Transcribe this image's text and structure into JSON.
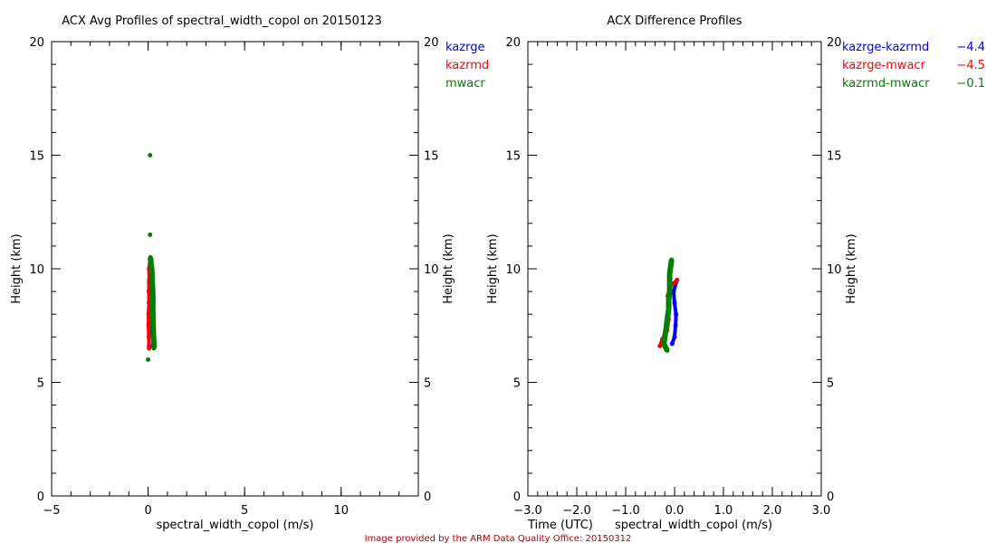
{
  "footer": "Image provided by the ARM Data Quality Office: 20150312",
  "chart_data": [
    {
      "type": "scatter",
      "title": "ACX Avg Profiles of spectral_width_copol on 20150123",
      "xlabel": "spectral_width_copol (m/s)",
      "ylabel": "Height (km)",
      "xlim": [
        -5,
        14
      ],
      "ylim": [
        0,
        20
      ],
      "xticks": [
        "-5",
        "0",
        "5",
        "10"
      ],
      "xtick_values": [
        -5,
        0,
        5,
        10
      ],
      "yticks": [
        "0",
        "5",
        "10",
        "15",
        "20"
      ],
      "ytick_values": [
        0,
        5,
        10,
        15,
        20
      ],
      "legend_position": "top-right-outside",
      "series": [
        {
          "name": "kazrge",
          "color": "#0000ff",
          "points": [
            [
              0.05,
              6.6
            ],
            [
              0.04,
              7.0
            ],
            [
              0.05,
              7.5
            ],
            [
              0.03,
              8.0
            ],
            [
              0.05,
              8.5
            ],
            [
              0.04,
              9.0
            ],
            [
              0.06,
              9.4
            ]
          ]
        },
        {
          "name": "kazrmd",
          "color": "#ff0000",
          "points": [
            [
              0.05,
              6.5
            ],
            [
              0.04,
              7.0
            ],
            [
              0.02,
              7.5
            ],
            [
              0.03,
              8.0
            ],
            [
              0.05,
              8.5
            ],
            [
              0.04,
              9.0
            ],
            [
              0.06,
              9.5
            ],
            [
              0.05,
              10.0
            ],
            [
              0.1,
              10.4
            ]
          ]
        },
        {
          "name": "mwacr",
          "color": "#008000",
          "points": [
            [
              0.3,
              6.5
            ],
            [
              0.3,
              6.8
            ],
            [
              0.28,
              7.0
            ],
            [
              0.27,
              7.3
            ],
            [
              0.26,
              7.6
            ],
            [
              0.25,
              8.0
            ],
            [
              0.24,
              8.3
            ],
            [
              0.25,
              8.6
            ],
            [
              0.24,
              9.0
            ],
            [
              0.22,
              9.3
            ],
            [
              0.2,
              9.6
            ],
            [
              0.2,
              9.9
            ],
            [
              0.16,
              10.2
            ],
            [
              0.12,
              10.5
            ],
            [
              0.1,
              15.0
            ],
            [
              0.1,
              11.5
            ],
            [
              0.0,
              6.0
            ]
          ]
        }
      ]
    },
    {
      "type": "scatter",
      "title": "ACX Difference Profiles",
      "xlabel": "spectral_width_copol (m/s)",
      "xlabel2": "Time (UTC)",
      "ylabel": "Height (km)",
      "xlim": [
        -3,
        3
      ],
      "ylim": [
        0,
        20
      ],
      "xticks": [
        "-3.0",
        "-2.0",
        "-1.0",
        "0.0",
        "1.0",
        "2.0",
        "3.0"
      ],
      "xtick_values": [
        -3,
        -2,
        -1,
        0,
        1,
        2,
        3
      ],
      "yticks": [
        "0",
        "5",
        "10",
        "15",
        "20"
      ],
      "ytick_values": [
        0,
        5,
        10,
        15,
        20
      ],
      "legend_position": "top-right-outside",
      "series": [
        {
          "name": "kazrge-kazrmd",
          "value": "-4.4",
          "color": "#0000ff",
          "points": [
            [
              -0.05,
              6.7
            ],
            [
              0.0,
              7.0
            ],
            [
              0.02,
              7.5
            ],
            [
              0.03,
              8.0
            ],
            [
              0.0,
              8.5
            ],
            [
              -0.02,
              9.0
            ],
            [
              0.05,
              9.5
            ]
          ]
        },
        {
          "name": "kazrge-mwacr",
          "value": "-4.5",
          "color": "#ff0000",
          "points": [
            [
              -0.3,
              6.6
            ],
            [
              -0.25,
              6.9
            ],
            [
              -0.15,
              7.3
            ],
            [
              -0.12,
              7.8
            ],
            [
              -0.12,
              8.3
            ],
            [
              -0.14,
              8.8
            ],
            [
              -0.1,
              9.2
            ],
            [
              0.05,
              9.5
            ]
          ]
        },
        {
          "name": "kazrmd-mwacr",
          "value": "-0.1",
          "color": "#008000",
          "points": [
            [
              -0.15,
              6.4
            ],
            [
              -0.22,
              6.7
            ],
            [
              -0.2,
              7.0
            ],
            [
              -0.17,
              7.4
            ],
            [
              -0.15,
              7.8
            ],
            [
              -0.12,
              8.2
            ],
            [
              -0.12,
              8.6
            ],
            [
              -0.1,
              9.0
            ],
            [
              -0.1,
              9.4
            ],
            [
              -0.1,
              9.8
            ],
            [
              -0.08,
              10.1
            ],
            [
              -0.06,
              10.4
            ]
          ]
        }
      ]
    }
  ]
}
